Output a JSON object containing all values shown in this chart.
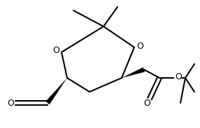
{
  "bg_color": "#ffffff",
  "line_color": "#000000",
  "line_width": 1.5,
  "figsize": [
    2.86,
    1.84
  ],
  "dpi": 100,
  "xlim": [
    0,
    286
  ],
  "ylim": [
    0,
    184
  ]
}
